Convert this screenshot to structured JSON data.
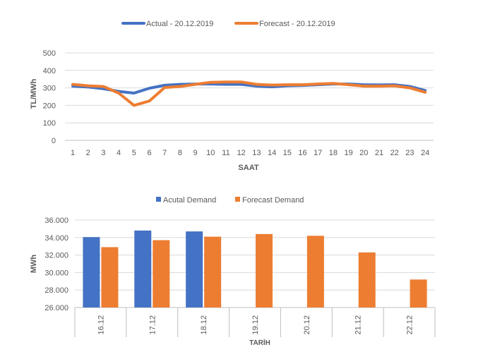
{
  "colors": {
    "actual": "#4472C4",
    "forecast": "#ED7D31",
    "grid": "#D9D9D9",
    "axis": "#BFBFBF",
    "text": "#595959"
  },
  "chart_data": [
    {
      "type": "line",
      "title": "",
      "xlabel": "SAAT",
      "ylabel": "TL/MWh",
      "x": [
        "1",
        "2",
        "3",
        "4",
        "5",
        "6",
        "7",
        "8",
        "9",
        "10",
        "11",
        "12",
        "13",
        "14",
        "15",
        "16",
        "17",
        "18",
        "19",
        "20",
        "21",
        "22",
        "23",
        "24"
      ],
      "yticks": [
        "0",
        "100",
        "200",
        "300",
        "400",
        "500"
      ],
      "ylim": [
        0,
        500
      ],
      "grid": true,
      "legend_position": "top-center",
      "series": [
        {
          "name": "Actual - 20.12.2019",
          "values": [
            310,
            305,
            295,
            280,
            270,
            298,
            315,
            320,
            322,
            322,
            320,
            320,
            310,
            306,
            312,
            314,
            318,
            322,
            322,
            318,
            317,
            318,
            308,
            285
          ]
        },
        {
          "name": "Forecast - 20.12.2019",
          "values": [
            320,
            312,
            308,
            270,
            200,
            225,
            302,
            308,
            320,
            332,
            334,
            334,
            320,
            316,
            318,
            318,
            322,
            326,
            318,
            310,
            310,
            312,
            300,
            275
          ]
        }
      ]
    },
    {
      "type": "bar",
      "title": "",
      "xlabel": "TARİH",
      "ylabel": "MWh",
      "categories": [
        "16.12",
        "17.12",
        "18.12",
        "19.12",
        "20.12",
        "21.12",
        "22.12"
      ],
      "yticks": [
        "26.000",
        "28.000",
        "30.000",
        "32.000",
        "34.000",
        "36.000"
      ],
      "ylim": [
        26000,
        36000
      ],
      "grid": true,
      "legend_position": "top-center",
      "series": [
        {
          "name": "Acutal Demand",
          "values": [
            34050,
            34800,
            34700,
            null,
            null,
            null,
            null
          ]
        },
        {
          "name": "Forecast Demand",
          "values": [
            32900,
            33700,
            34100,
            34400,
            34200,
            32300,
            29200
          ]
        }
      ]
    }
  ]
}
